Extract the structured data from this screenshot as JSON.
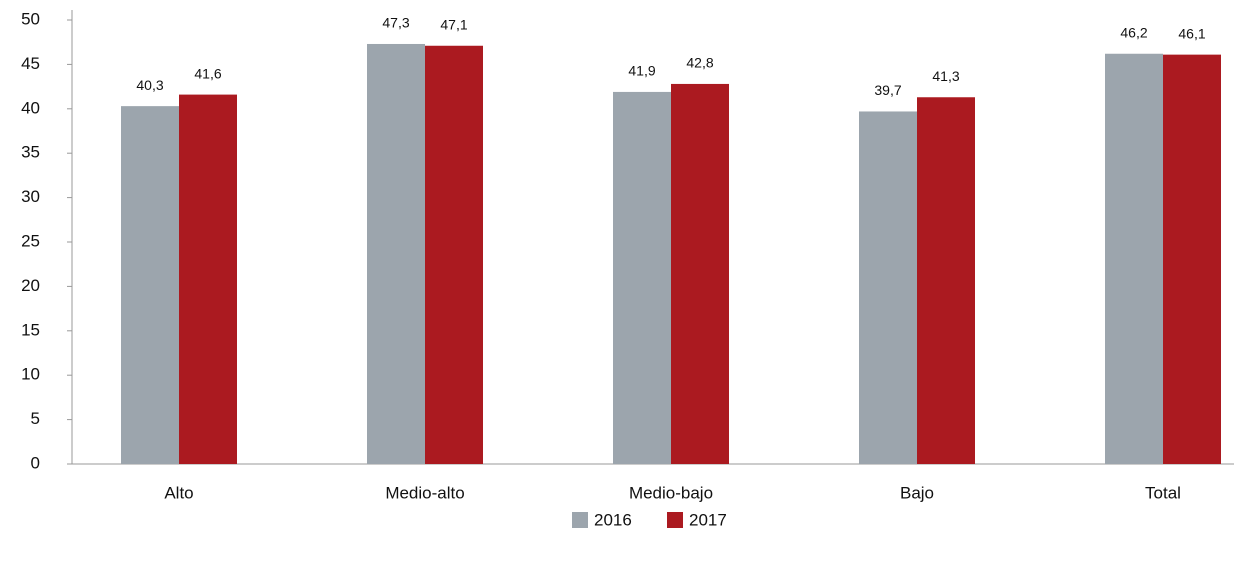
{
  "chart_data": {
    "type": "bar",
    "categories": [
      "Alto",
      "Medio-alto",
      "Medio-bajo",
      "Bajo",
      "Total"
    ],
    "series": [
      {
        "name": "2016",
        "color": "#9ca5ad",
        "values": [
          40.3,
          47.3,
          41.9,
          39.7,
          46.2
        ],
        "value_labels": [
          "40,3",
          "47,3",
          "41,9",
          "39,7",
          "46,2"
        ]
      },
      {
        "name": "2017",
        "color": "#ab1a20",
        "values": [
          41.6,
          47.1,
          42.8,
          41.3,
          46.1
        ],
        "value_labels": [
          "41,6",
          "47,1",
          "42,8",
          "41,3",
          "46,1"
        ]
      }
    ],
    "ylim": [
      0,
      50
    ],
    "yticks": [
      0,
      5,
      10,
      15,
      20,
      25,
      30,
      35,
      40,
      45,
      50
    ],
    "grid": false,
    "legend": "bottom"
  }
}
